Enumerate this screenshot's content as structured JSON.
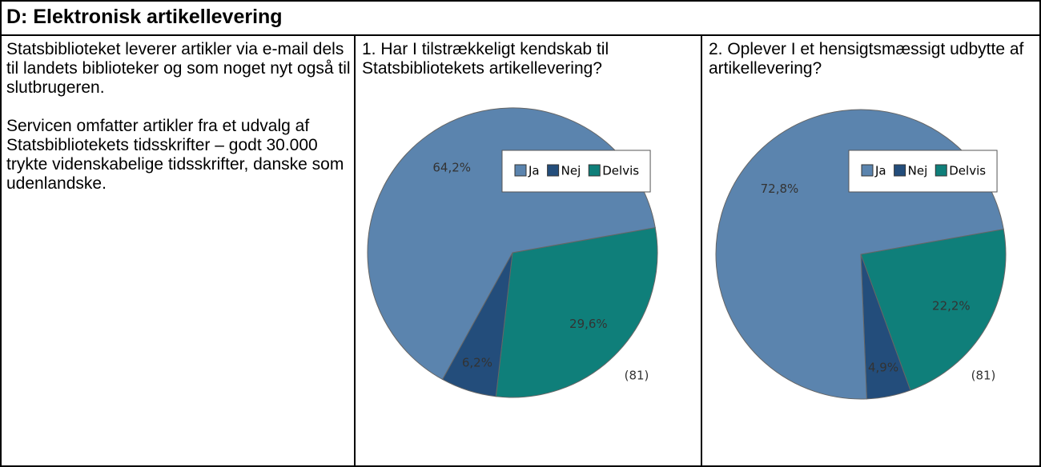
{
  "header": {
    "title": "D: Elektronisk artikellevering"
  },
  "intro": {
    "paragraphs": [
      "Statsbiblioteket leverer artikler via e-mail dels til landets biblioteker og som noget nyt også til slutbrugeren.",
      "Servicen omfatter artikler fra et udvalg af Statsbibliotekets tidsskrifter – godt 30.000 trykte videnskabelige tidsskrifter, danske som udenlandske."
    ]
  },
  "chart_data": [
    {
      "type": "pie",
      "title": "1. Har I tilstrækkeligt kendskab til Statsbibliotekets artikellevering?",
      "categories": [
        "Ja",
        "Nej",
        "Delvis"
      ],
      "values": [
        64.2,
        6.2,
        29.6
      ],
      "value_labels": [
        "64,2%",
        "6,2%",
        "29,6%"
      ],
      "colors": [
        "#5b84ae",
        "#234d7b",
        "#0f7f7a"
      ],
      "annotation": "(81)",
      "legend": "upper right"
    },
    {
      "type": "pie",
      "title": "2. Oplever I et hensigtsmæssigt udbytte af artikellevering?",
      "categories": [
        "Ja",
        "Nej",
        "Delvis"
      ],
      "values": [
        72.8,
        4.9,
        22.2
      ],
      "value_labels": [
        "72,8%",
        "4,9%",
        "22,2%"
      ],
      "colors": [
        "#5b84ae",
        "#234d7b",
        "#0f7f7a"
      ],
      "annotation": "(81)",
      "legend": "upper right"
    }
  ]
}
